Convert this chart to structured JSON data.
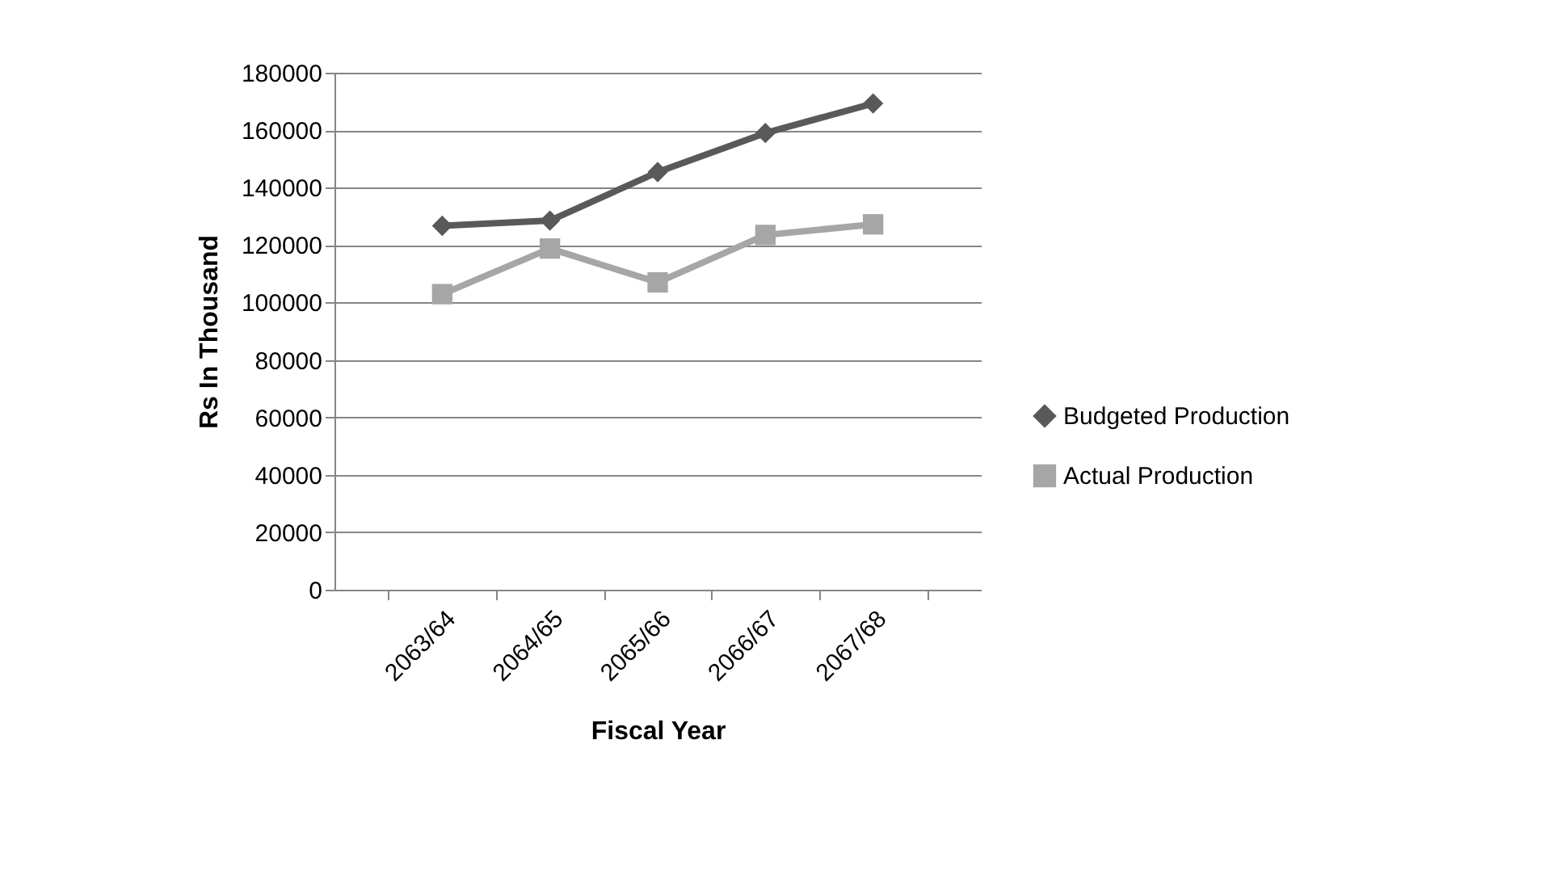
{
  "chart_data": {
    "type": "line",
    "xlabel": "Fiscal Year",
    "ylabel": "Rs In Thousand",
    "categories": [
      "2063/64",
      "2064/65",
      "2065/66",
      "2066/67",
      "2067/68"
    ],
    "series": [
      {
        "name": "Budgeted Production",
        "color": "#595959",
        "marker": "diamond",
        "values": [
          126700,
          128500,
          145400,
          159000,
          169300
        ]
      },
      {
        "name": "Actual Production",
        "color": "#a6a6a6",
        "marker": "square",
        "values": [
          102900,
          118800,
          107000,
          123500,
          127200
        ]
      }
    ],
    "ylim": [
      0,
      180000
    ],
    "yticks": [
      0,
      20000,
      40000,
      60000,
      80000,
      100000,
      120000,
      140000,
      160000,
      180000
    ],
    "grid": "y",
    "legend": "right",
    "line_style": "solid"
  }
}
